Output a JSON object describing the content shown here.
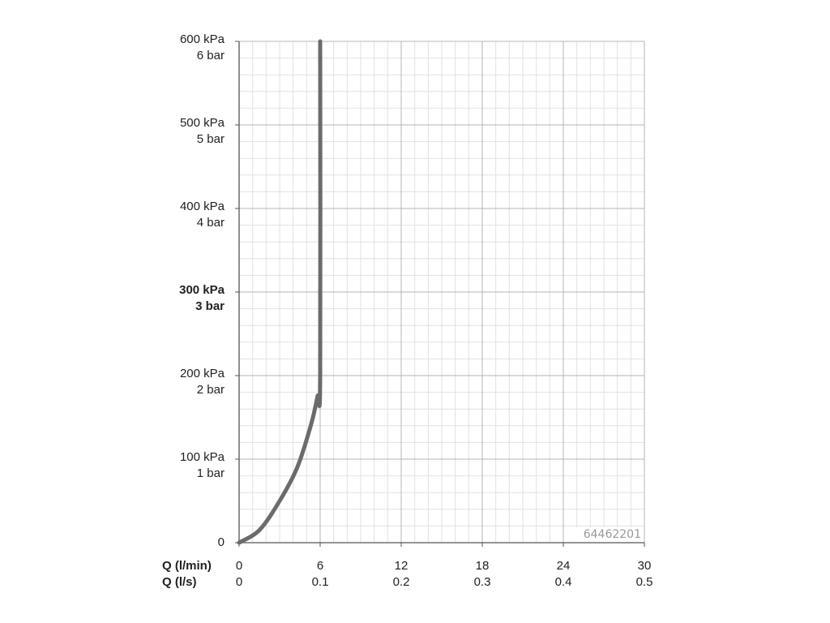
{
  "chart_data": {
    "type": "line",
    "x_axes": [
      {
        "name": "Q (l/min)",
        "ticks": [
          "0",
          "6",
          "12",
          "18",
          "24",
          "30"
        ],
        "range": [
          0,
          30
        ]
      },
      {
        "name": "Q (l/s)",
        "ticks": [
          "0",
          "0.1",
          "0.2",
          "0.3",
          "0.4",
          "0.5"
        ],
        "range": [
          0,
          0.5
        ]
      }
    ],
    "y_axis": {
      "range": [
        0,
        600
      ],
      "ticks": [
        {
          "kpa": "0",
          "bar": ""
        },
        {
          "kpa": "100 kPa",
          "bar": "1 bar"
        },
        {
          "kpa": "200 kPa",
          "bar": "2 bar"
        },
        {
          "kpa": "300 kPa",
          "bar": "3 bar",
          "emphasis": true
        },
        {
          "kpa": "400 kPa",
          "bar": "4 bar"
        },
        {
          "kpa": "500 kPa",
          "bar": "5 bar"
        },
        {
          "kpa": "600 kPa",
          "bar": "6 bar"
        }
      ]
    },
    "grid": true,
    "series": [
      {
        "x": [
          0,
          1.5,
          3.0,
          4.3,
          5.3,
          5.8,
          6.0,
          6.0
        ],
        "y": [
          0,
          15,
          50,
          90,
          140,
          175,
          200,
          600
        ],
        "color": "#6b6b6b"
      }
    ]
  },
  "code_label": "64462201"
}
